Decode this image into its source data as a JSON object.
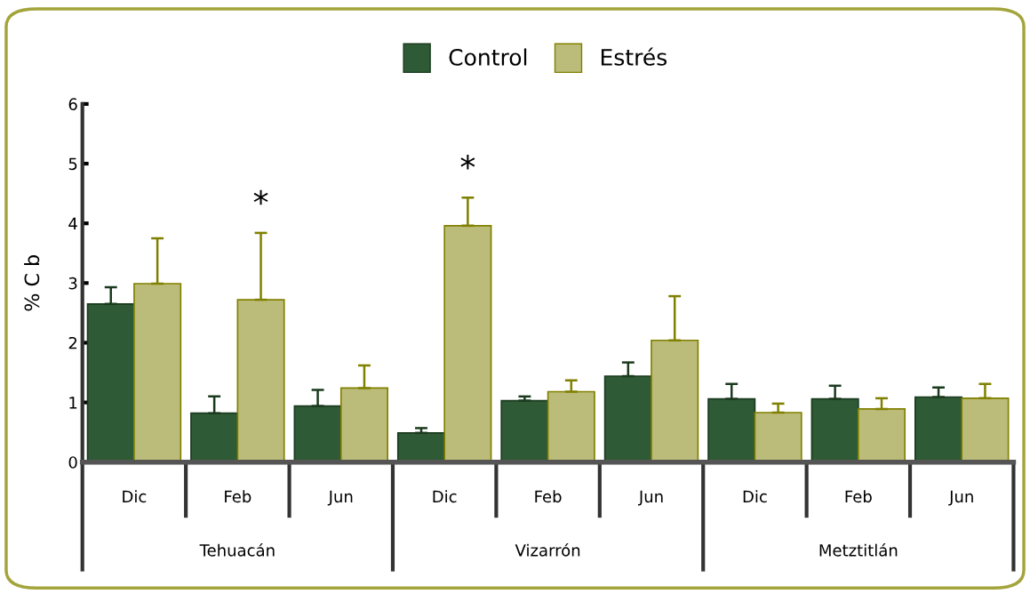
{
  "chart_data": {
    "type": "bar",
    "ylabel": "% C b",
    "categories": [
      "Dic",
      "Feb",
      "Jun",
      "Dic",
      "Feb",
      "Jun",
      "Dic",
      "Feb",
      "Jun"
    ],
    "series": [
      {
        "name": "Control",
        "color": "#2f5a36",
        "values": [
          2.65,
          0.82,
          0.94,
          0.49,
          1.03,
          1.44,
          1.06,
          1.06,
          1.09
        ],
        "errors": [
          0.28,
          0.28,
          0.27,
          0.08,
          0.07,
          0.23,
          0.25,
          0.22,
          0.16
        ]
      },
      {
        "name": "Estrés",
        "color": "#bcbc7a",
        "values": [
          2.99,
          2.72,
          1.24,
          3.96,
          1.18,
          2.04,
          0.83,
          0.89,
          1.07
        ],
        "errors": [
          0.76,
          1.12,
          0.38,
          0.47,
          0.19,
          0.74,
          0.15,
          0.18,
          0.24
        ]
      }
    ],
    "ylim": [
      0,
      6
    ],
    "yticks": [
      0,
      1,
      2,
      3,
      4,
      5,
      6
    ],
    "grid": false,
    "legend": "top",
    "annotations": [
      "*",
      "*",
      "Tehuacán",
      "Vizarrón",
      "Metztitlán"
    ]
  }
}
